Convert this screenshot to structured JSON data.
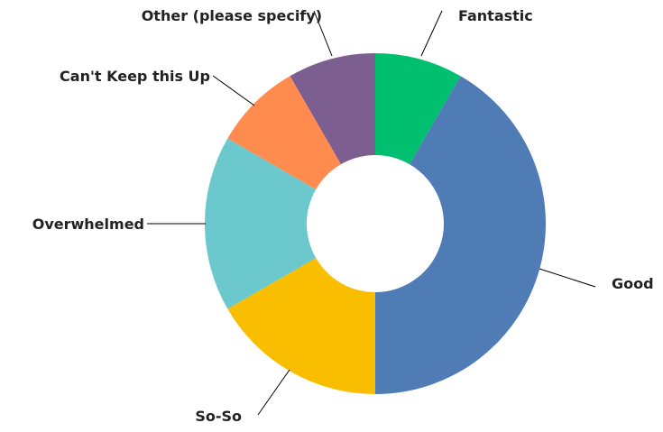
{
  "chart_data": {
    "type": "pie",
    "donut": true,
    "slices": [
      {
        "label": "Fantastic",
        "value": 8.33,
        "color": "#00BF6F"
      },
      {
        "label": "Good",
        "value": 41.67,
        "color": "#507CB6"
      },
      {
        "label": "So-So",
        "value": 16.67,
        "color": "#F9BE00"
      },
      {
        "label": "Overwhelmed",
        "value": 16.67,
        "color": "#6BC8CD"
      },
      {
        "label": "Can't Keep this Up",
        "value": 8.33,
        "color": "#FF8B4F"
      },
      {
        "label": "Other (please specify)",
        "value": 8.33,
        "color": "#7D5E90"
      }
    ]
  }
}
